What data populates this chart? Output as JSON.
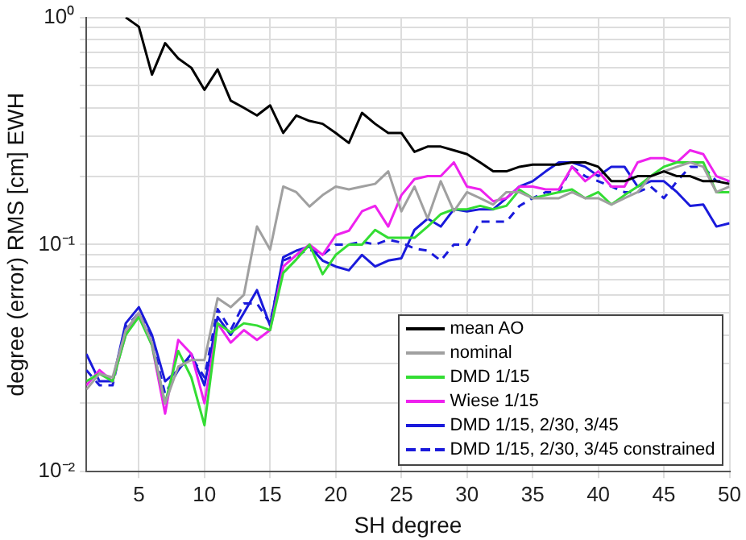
{
  "chart_data": {
    "type": "line",
    "xlabel": "SH degree",
    "ylabel": "degree (error) RMS [cm] EWH",
    "log": "y",
    "grid": true,
    "legend": "bottom right",
    "marker": "none",
    "x": [
      1,
      2,
      3,
      4,
      5,
      6,
      7,
      8,
      9,
      10,
      11,
      12,
      13,
      14,
      15,
      16,
      17,
      18,
      19,
      20,
      21,
      22,
      23,
      24,
      25,
      26,
      27,
      28,
      29,
      30,
      31,
      32,
      33,
      34,
      35,
      36,
      37,
      38,
      39,
      40,
      41,
      42,
      43,
      44,
      45,
      46,
      47,
      48,
      49,
      50
    ],
    "xlim": [
      1,
      50
    ],
    "xticks": [
      5,
      10,
      15,
      20,
      25,
      30,
      35,
      40,
      45,
      50
    ],
    "ylim": [
      0.01,
      1
    ],
    "yticks": [
      {
        "value": 0.01,
        "label": "10⁻²"
      },
      {
        "value": 0.02,
        "label": null
      },
      {
        "value": 0.03,
        "label": null
      },
      {
        "value": 0.04,
        "label": null
      },
      {
        "value": 0.05,
        "label": null
      },
      {
        "value": 0.06,
        "label": null
      },
      {
        "value": 0.07,
        "label": null
      },
      {
        "value": 0.08,
        "label": null
      },
      {
        "value": 0.09,
        "label": null
      },
      {
        "value": 0.1,
        "label": "10⁻¹"
      },
      {
        "value": 0.2,
        "label": null
      },
      {
        "value": 0.3,
        "label": null
      },
      {
        "value": 0.4,
        "label": null
      },
      {
        "value": 0.5,
        "label": null
      },
      {
        "value": 0.6,
        "label": null
      },
      {
        "value": 0.7,
        "label": null
      },
      {
        "value": 0.8,
        "label": null
      },
      {
        "value": 0.9,
        "label": null
      },
      {
        "value": 1,
        "label": "10⁰"
      }
    ],
    "series": [
      {
        "name": "mean AO",
        "color": "#000000",
        "values": [
          null,
          null,
          null,
          1.0,
          0.91,
          0.56,
          0.77,
          0.66,
          0.6,
          0.48,
          0.59,
          0.43,
          0.4,
          0.37,
          0.41,
          0.31,
          0.37,
          0.35,
          0.34,
          0.31,
          0.28,
          0.38,
          0.34,
          0.31,
          0.31,
          0.256,
          0.27,
          0.27,
          0.26,
          0.25,
          0.23,
          0.21,
          0.21,
          0.22,
          0.225,
          0.225,
          0.225,
          0.23,
          0.23,
          0.22,
          0.19,
          0.19,
          0.2,
          0.2,
          0.21,
          0.2,
          0.2,
          0.19,
          0.19,
          0.185
        ]
      },
      {
        "name": "nominal",
        "color": "#a0a0a0",
        "values": [
          0.023,
          0.027,
          0.026,
          0.042,
          0.05,
          0.037,
          0.02,
          0.029,
          0.031,
          0.031,
          0.058,
          0.053,
          0.06,
          0.12,
          0.095,
          0.18,
          0.17,
          0.147,
          0.165,
          0.18,
          0.175,
          0.18,
          0.185,
          0.21,
          0.14,
          0.18,
          0.13,
          0.19,
          0.14,
          0.17,
          0.16,
          0.15,
          0.17,
          0.17,
          0.16,
          0.16,
          0.16,
          0.17,
          0.16,
          0.16,
          0.15,
          0.16,
          0.17,
          0.2,
          0.21,
          0.22,
          0.23,
          0.22,
          0.17,
          0.18
        ]
      },
      {
        "name": "DMD 1/15",
        "color": "#33dd33",
        "values": [
          0.025,
          0.027,
          0.025,
          0.04,
          0.048,
          0.036,
          0.02,
          0.034,
          0.026,
          0.016,
          0.045,
          0.041,
          0.045,
          0.044,
          0.042,
          0.075,
          0.086,
          0.1,
          0.074,
          0.09,
          0.1,
          0.1,
          0.116,
          0.107,
          0.107,
          0.107,
          0.12,
          0.136,
          0.143,
          0.143,
          0.148,
          0.143,
          0.148,
          0.174,
          0.16,
          0.165,
          0.17,
          0.175,
          0.16,
          0.17,
          0.15,
          0.165,
          0.18,
          0.2,
          0.22,
          0.23,
          0.23,
          0.23,
          0.17,
          0.17
        ]
      },
      {
        "name": "Wiese 1/15",
        "color": "#ee22ee",
        "values": [
          0.024,
          0.028,
          0.025,
          0.04,
          0.05,
          0.036,
          0.018,
          0.038,
          0.033,
          0.02,
          0.045,
          0.037,
          0.042,
          0.038,
          0.042,
          0.08,
          0.09,
          0.1,
          0.09,
          0.11,
          0.115,
          0.14,
          0.148,
          0.12,
          0.165,
          0.194,
          0.2,
          0.2,
          0.23,
          0.18,
          0.175,
          0.155,
          0.16,
          0.18,
          0.18,
          0.175,
          0.175,
          0.22,
          0.19,
          0.21,
          0.18,
          0.18,
          0.23,
          0.24,
          0.24,
          0.23,
          0.26,
          0.25,
          0.2,
          0.19
        ]
      },
      {
        "name": "DMD 1/15, 2/30, 3/45",
        "color": "#1a1adb",
        "values": [
          0.033,
          0.025,
          0.025,
          0.045,
          0.053,
          0.04,
          0.025,
          0.028,
          0.033,
          0.024,
          0.048,
          0.04,
          0.05,
          0.063,
          0.044,
          0.088,
          0.094,
          0.098,
          0.085,
          0.08,
          0.077,
          0.09,
          0.08,
          0.085,
          0.087,
          0.116,
          0.13,
          0.12,
          0.143,
          0.14,
          0.143,
          0.143,
          0.16,
          0.18,
          0.19,
          0.21,
          0.23,
          0.23,
          0.22,
          0.2,
          0.22,
          0.22,
          0.18,
          0.19,
          0.19,
          0.17,
          0.148,
          0.15,
          0.12,
          0.124
        ]
      },
      {
        "name": "DMD 1/15, 2/30, 3/45 constrained",
        "color": "#1a1adb",
        "line_style": "dashed",
        "values": [
          0.028,
          0.024,
          0.024,
          0.043,
          0.05,
          0.038,
          0.022,
          0.028,
          0.032,
          0.026,
          0.052,
          0.042,
          0.055,
          0.055,
          0.045,
          0.085,
          0.09,
          0.095,
          0.09,
          0.1,
          0.1,
          0.103,
          0.1,
          0.105,
          0.102,
          0.096,
          0.094,
          0.085,
          0.1,
          0.1,
          0.126,
          0.126,
          0.126,
          0.148,
          0.16,
          0.17,
          0.17,
          0.22,
          0.2,
          0.19,
          0.18,
          0.17,
          0.17,
          0.18,
          0.16,
          0.19,
          0.22,
          0.22,
          0.19,
          0.19
        ]
      }
    ]
  }
}
